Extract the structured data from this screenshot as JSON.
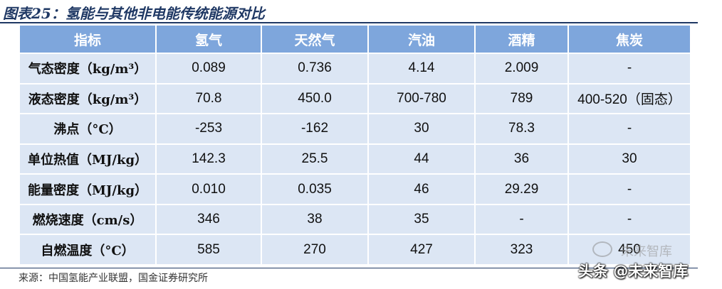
{
  "title": "图表25：氢能与其他非电能传统能源对比",
  "table": {
    "headers": [
      "指标",
      "氢气",
      "天然气",
      "汽油",
      "酒精",
      "焦炭"
    ],
    "rows": [
      [
        "气态密度（kg/m³）",
        "0.089",
        "0.736",
        "4.14",
        "2.009",
        "-"
      ],
      [
        "液态密度（kg/m³）",
        "70.8",
        "450.0",
        "700-780",
        "789",
        "400-520（固态）"
      ],
      [
        "沸点（°C）",
        "-253",
        "-162",
        "30",
        "78.3",
        "-"
      ],
      [
        "单位热值（MJ/kg）",
        "142.3",
        "25.5",
        "44",
        "36",
        "30"
      ],
      [
        "能量密度（MJ/kg）",
        "0.010",
        "0.035",
        "46",
        "29.29",
        "-"
      ],
      [
        "燃烧速度（cm/s）",
        "346",
        "38",
        "35",
        "-",
        "-"
      ],
      [
        "自燃温度（°C）",
        "585",
        "270",
        "427",
        "323",
        "450"
      ]
    ]
  },
  "source": "来源：中国氢能产业联盟，国金证券研究所",
  "watermark": {
    "main": "头条 @未来智库",
    "faint": "未来智库"
  },
  "colors": {
    "header_bg": "#7ea6dc",
    "cell_bg": "#dce6f4",
    "title": "#1f3864"
  }
}
